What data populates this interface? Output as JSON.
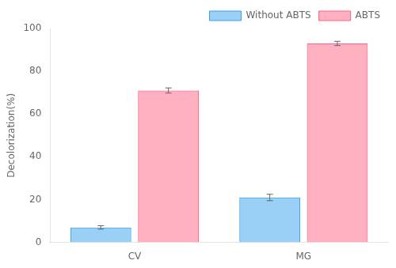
{
  "chart_data": {
    "type": "bar",
    "categories": [
      "CV",
      "MG"
    ],
    "series": [
      {
        "name": "Without ABTS",
        "values": [
          7.0,
          21.0
        ],
        "errors": [
          0.8,
          1.5
        ]
      },
      {
        "name": "ABTS",
        "values": [
          71.0,
          93.0
        ],
        "errors": [
          1.2,
          1.0
        ]
      }
    ],
    "ylabel": "Decolorization(%)",
    "ylim": [
      0,
      100
    ],
    "yticks": [
      0,
      20,
      40,
      60,
      80,
      100
    ],
    "legend": "upper right",
    "grid": false
  }
}
